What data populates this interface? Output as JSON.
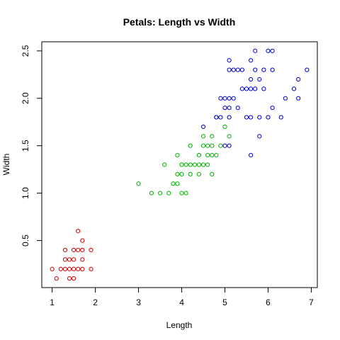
{
  "chart_data": {
    "type": "scatter",
    "title": "Petals: Length vs Width",
    "xlabel": "Length",
    "ylabel": "Width",
    "xlim": [
      0.76,
      7.14
    ],
    "ylim": [
      0.004,
      2.596
    ],
    "xticks": [
      1,
      2,
      3,
      4,
      5,
      6,
      7
    ],
    "yticks": [
      0.5,
      1.0,
      1.5,
      2.0,
      2.5
    ],
    "ytick_labels": [
      "0.5",
      "1.0",
      "1.5",
      "2.0",
      "2.5"
    ],
    "grid": false,
    "legend": "none",
    "series": [
      {
        "color": "#cc0000",
        "points": [
          [
            1.0,
            0.2
          ],
          [
            1.1,
            0.1
          ],
          [
            1.2,
            0.2
          ],
          [
            1.3,
            0.2
          ],
          [
            1.3,
            0.3
          ],
          [
            1.3,
            0.4
          ],
          [
            1.4,
            0.1
          ],
          [
            1.4,
            0.2
          ],
          [
            1.4,
            0.3
          ],
          [
            1.5,
            0.1
          ],
          [
            1.5,
            0.2
          ],
          [
            1.5,
            0.3
          ],
          [
            1.5,
            0.4
          ],
          [
            1.6,
            0.2
          ],
          [
            1.6,
            0.4
          ],
          [
            1.6,
            0.6
          ],
          [
            1.7,
            0.2
          ],
          [
            1.7,
            0.3
          ],
          [
            1.7,
            0.4
          ],
          [
            1.7,
            0.5
          ],
          [
            1.9,
            0.2
          ],
          [
            1.9,
            0.4
          ]
        ]
      },
      {
        "color": "#00b300",
        "points": [
          [
            3.0,
            1.1
          ],
          [
            3.3,
            1.0
          ],
          [
            3.5,
            1.0
          ],
          [
            3.6,
            1.3
          ],
          [
            3.7,
            1.0
          ],
          [
            3.8,
            1.1
          ],
          [
            3.9,
            1.1
          ],
          [
            3.9,
            1.2
          ],
          [
            3.9,
            1.4
          ],
          [
            4.0,
            1.0
          ],
          [
            4.0,
            1.2
          ],
          [
            4.0,
            1.3
          ],
          [
            4.1,
            1.0
          ],
          [
            4.1,
            1.3
          ],
          [
            4.2,
            1.2
          ],
          [
            4.2,
            1.3
          ],
          [
            4.2,
            1.5
          ],
          [
            4.3,
            1.3
          ],
          [
            4.4,
            1.2
          ],
          [
            4.4,
            1.3
          ],
          [
            4.4,
            1.4
          ],
          [
            4.5,
            1.3
          ],
          [
            4.5,
            1.5
          ],
          [
            4.5,
            1.6
          ],
          [
            4.6,
            1.3
          ],
          [
            4.6,
            1.4
          ],
          [
            4.6,
            1.5
          ],
          [
            4.7,
            1.2
          ],
          [
            4.7,
            1.4
          ],
          [
            4.7,
            1.5
          ],
          [
            4.7,
            1.6
          ],
          [
            4.8,
            1.4
          ],
          [
            4.8,
            1.8
          ],
          [
            4.9,
            1.5
          ],
          [
            5.0,
            1.7
          ],
          [
            5.1,
            1.6
          ]
        ]
      },
      {
        "color": "#0000cc",
        "points": [
          [
            4.5,
            1.7
          ],
          [
            4.8,
            1.8
          ],
          [
            4.9,
            1.8
          ],
          [
            4.9,
            2.0
          ],
          [
            5.0,
            1.5
          ],
          [
            5.0,
            1.9
          ],
          [
            5.0,
            2.0
          ],
          [
            5.1,
            1.5
          ],
          [
            5.1,
            1.8
          ],
          [
            5.1,
            1.9
          ],
          [
            5.1,
            2.0
          ],
          [
            5.1,
            2.3
          ],
          [
            5.1,
            2.4
          ],
          [
            5.2,
            2.0
          ],
          [
            5.2,
            2.3
          ],
          [
            5.3,
            1.9
          ],
          [
            5.3,
            2.3
          ],
          [
            5.4,
            2.1
          ],
          [
            5.4,
            2.3
          ],
          [
            5.5,
            1.8
          ],
          [
            5.5,
            2.1
          ],
          [
            5.6,
            1.4
          ],
          [
            5.6,
            1.8
          ],
          [
            5.6,
            2.1
          ],
          [
            5.6,
            2.2
          ],
          [
            5.6,
            2.4
          ],
          [
            5.7,
            2.1
          ],
          [
            5.7,
            2.3
          ],
          [
            5.7,
            2.5
          ],
          [
            5.8,
            1.6
          ],
          [
            5.8,
            1.8
          ],
          [
            5.8,
            2.2
          ],
          [
            5.9,
            2.1
          ],
          [
            5.9,
            2.3
          ],
          [
            6.0,
            1.8
          ],
          [
            6.0,
            2.5
          ],
          [
            6.1,
            1.9
          ],
          [
            6.1,
            2.3
          ],
          [
            6.1,
            2.5
          ],
          [
            6.3,
            1.8
          ],
          [
            6.4,
            2.0
          ],
          [
            6.6,
            2.1
          ],
          [
            6.7,
            2.0
          ],
          [
            6.7,
            2.2
          ],
          [
            6.9,
            2.3
          ]
        ]
      }
    ]
  }
}
